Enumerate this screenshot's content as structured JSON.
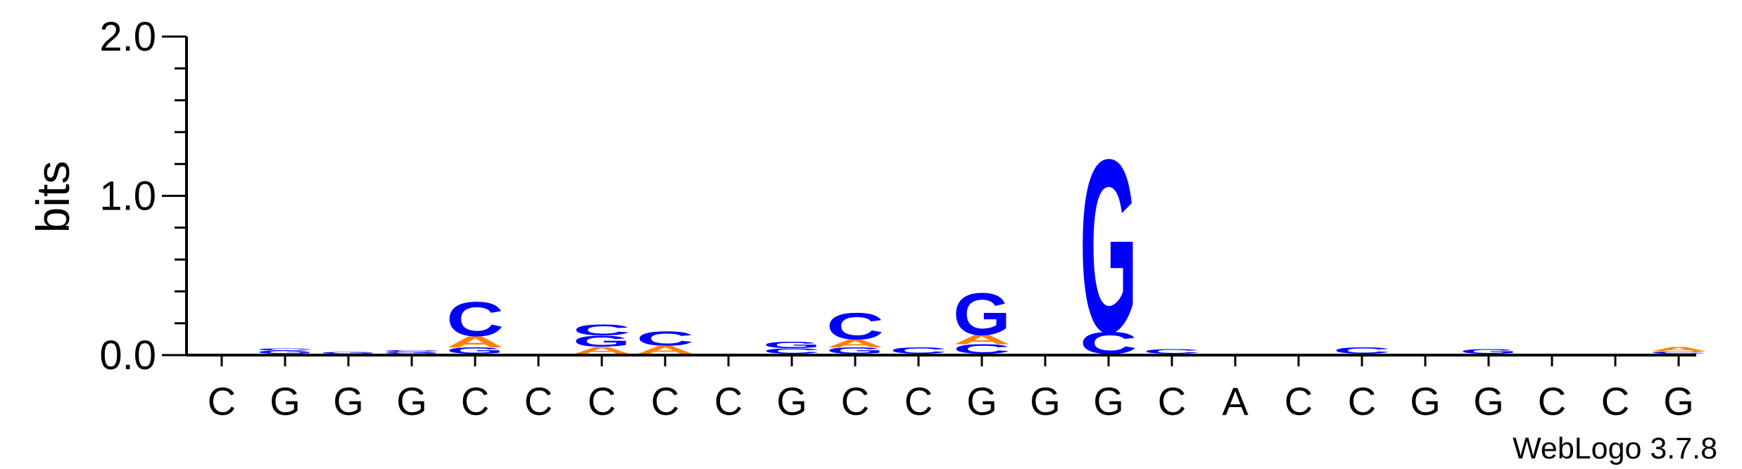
{
  "chart_data": {
    "type": "sequence-logo",
    "ylabel": "bits",
    "ylim": [
      0,
      2.0
    ],
    "yticks": [
      {
        "value": 0.0,
        "label": "0.0"
      },
      {
        "value": 1.0,
        "label": "1.0"
      },
      {
        "value": 2.0,
        "label": "2.0"
      }
    ],
    "minor_tick_step": 0.2,
    "colors": {
      "C": "#0000ff",
      "G": "#0000ff",
      "A": "#ff8000",
      "T": "#ff8000"
    },
    "consensus": [
      "C",
      "G",
      "G",
      "G",
      "C",
      "C",
      "C",
      "C",
      "C",
      "G",
      "C",
      "C",
      "G",
      "G",
      "G",
      "C",
      "A",
      "C",
      "C",
      "G",
      "G",
      "C",
      "C",
      "G"
    ],
    "stacks": [
      [],
      [
        {
          "letter": "G",
          "bits": 0.02
        },
        {
          "letter": "C",
          "bits": 0.015
        }
      ],
      [
        {
          "letter": "G",
          "bits": 0.012
        }
      ],
      [
        {
          "letter": "G",
          "bits": 0.012
        },
        {
          "letter": "C",
          "bits": 0.01
        }
      ],
      [
        {
          "letter": "G",
          "bits": 0.04
        },
        {
          "letter": "A",
          "bits": 0.07
        },
        {
          "letter": "C",
          "bits": 0.22
        }
      ],
      [],
      [
        {
          "letter": "A",
          "bits": 0.045
        },
        {
          "letter": "G",
          "bits": 0.07
        },
        {
          "letter": "C",
          "bits": 0.07
        }
      ],
      [
        {
          "letter": "A",
          "bits": 0.05
        },
        {
          "letter": "C",
          "bits": 0.09
        }
      ],
      [],
      [
        {
          "letter": "C",
          "bits": 0.035
        },
        {
          "letter": "G",
          "bits": 0.04
        }
      ],
      [
        {
          "letter": "G",
          "bits": 0.04
        },
        {
          "letter": "A",
          "bits": 0.05
        },
        {
          "letter": "C",
          "bits": 0.17
        }
      ],
      [
        {
          "letter": "C",
          "bits": 0.04
        }
      ],
      [
        {
          "letter": "C",
          "bits": 0.06
        },
        {
          "letter": "A",
          "bits": 0.06
        },
        {
          "letter": "G",
          "bits": 0.27
        }
      ],
      [],
      [
        {
          "letter": "C",
          "bits": 0.14
        },
        {
          "letter": "G",
          "bits": 1.11
        }
      ],
      [
        {
          "letter": "C",
          "bits": 0.03
        }
      ],
      [],
      [],
      [
        {
          "letter": "C",
          "bits": 0.04
        }
      ],
      [],
      [
        {
          "letter": "G",
          "bits": 0.03
        }
      ],
      [],
      [],
      [
        {
          "letter": "C",
          "bits": 0.015
        },
        {
          "letter": "A",
          "bits": 0.025
        }
      ]
    ]
  },
  "credit": "WebLogo 3.7.8"
}
